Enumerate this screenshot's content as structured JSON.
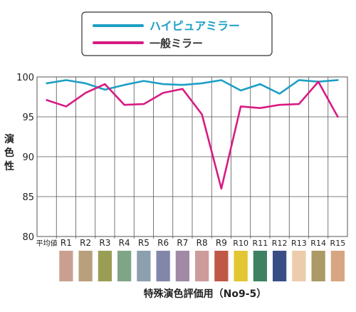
{
  "chart_data": {
    "type": "line",
    "xlabel": "特殊演色評価用（No9-5）",
    "ylabel": "演色性",
    "ylim": [
      80,
      100
    ],
    "yticks": [
      80,
      85,
      90,
      95,
      100
    ],
    "grid": true,
    "legend_position": "top",
    "categories": [
      "平均値",
      "R1",
      "R2",
      "R3",
      "R4",
      "R5",
      "R6",
      "R7",
      "R8",
      "R9",
      "R10",
      "R11",
      "R12",
      "R13",
      "R14",
      "R15"
    ],
    "swatch_colors": [
      "#ffffff",
      "#c9a090",
      "#b8a07c",
      "#9a9e54",
      "#7ea686",
      "#8c9fae",
      "#8286a8",
      "#a08aa6",
      "#cc9c9a",
      "#c05848",
      "#e2c632",
      "#3e8262",
      "#3a4e86",
      "#ecccaa",
      "#ab9a66",
      "#d6a682"
    ],
    "series": [
      {
        "name": "ハイピュアミラー",
        "color": "#1e9fc4",
        "values": [
          99.2,
          99.6,
          99.2,
          98.4,
          99.0,
          99.5,
          99.1,
          99.0,
          99.2,
          99.6,
          98.3,
          99.1,
          97.9,
          99.6,
          99.4,
          99.6
        ]
      },
      {
        "name": "一般ミラー",
        "color": "#d81b82",
        "values": [
          97.1,
          96.3,
          98.0,
          99.1,
          96.5,
          96.6,
          98.0,
          98.5,
          95.3,
          86.0,
          96.3,
          96.1,
          96.5,
          96.6,
          99.4,
          95.0
        ]
      }
    ]
  }
}
